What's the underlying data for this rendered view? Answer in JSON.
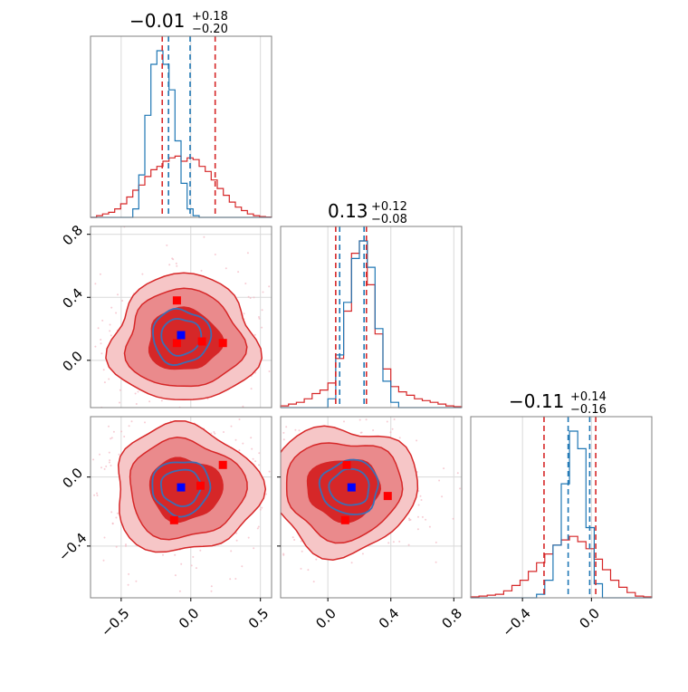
{
  "chart_data": {
    "type": "corner",
    "colors": {
      "posterior_a": "#d62728",
      "posterior_b": "#1f77b4",
      "truth_marker": "#0000ff",
      "alt_marker": "#ff0000",
      "grid": "#d9d9d9"
    },
    "parameters": [
      {
        "title_value": "−0.01",
        "title_plus": "+0.18",
        "title_minus": "−0.20",
        "range": [
          -0.72,
          0.58
        ],
        "ticks": [
          -0.5,
          0.0,
          0.5
        ],
        "tick_labels": [
          "−0.5",
          "0.0",
          "0.5"
        ],
        "quantile_lines": {
          "posterior_a": [
            -0.205,
            0.175
          ],
          "posterior_b": [
            -0.16,
            -0.005
          ]
        }
      },
      {
        "title_value": "0.13",
        "title_plus": "+0.12",
        "title_minus": "−0.08",
        "range": [
          -0.3,
          0.85
        ],
        "ticks": [
          0.0,
          0.4,
          0.8
        ],
        "tick_labels": [
          "0.0",
          "0.4",
          "0.8"
        ],
        "quantile_lines": {
          "posterior_a": [
            0.05,
            0.245
          ],
          "posterior_b": [
            0.075,
            0.23
          ]
        }
      },
      {
        "title_value": "−0.11",
        "title_plus": "+0.14",
        "title_minus": "−0.16",
        "range": [
          -0.7,
          0.35
        ],
        "ticks": [
          -0.4,
          0.0
        ],
        "tick_labels": [
          "−0.4",
          "0.0"
        ],
        "quantile_lines": {
          "posterior_a": [
            -0.275,
            0.025
          ],
          "posterior_b": [
            -0.135,
            -0.01
          ]
        }
      }
    ],
    "hist_1d": [
      {
        "posterior_a": [
          0,
          0.01,
          0.02,
          0.03,
          0.05,
          0.08,
          0.12,
          0.16,
          0.19,
          0.24,
          0.28,
          0.3,
          0.33,
          0.35,
          0.36,
          0.33,
          0.35,
          0.34,
          0.3,
          0.27,
          0.22,
          0.17,
          0.13,
          0.09,
          0.06,
          0.04,
          0.02,
          0.01,
          0.005,
          0.002
        ],
        "posterior_b": [
          0,
          0,
          0,
          0,
          0,
          0,
          0,
          0.05,
          0.25,
          0.6,
          0.9,
          0.98,
          0.9,
          0.75,
          0.45,
          0.2,
          0.05,
          0.01,
          0,
          0,
          0,
          0,
          0,
          0,
          0,
          0,
          0,
          0,
          0,
          0
        ]
      },
      {
        "posterior_a": [
          0.01,
          0.02,
          0.03,
          0.05,
          0.08,
          0.1,
          0.14,
          0.28,
          0.55,
          0.88,
          0.95,
          0.7,
          0.42,
          0.22,
          0.12,
          0.09,
          0.07,
          0.05,
          0.04,
          0.03,
          0.02,
          0.01,
          0.005
        ],
        "posterior_b": [
          0,
          0,
          0,
          0,
          0,
          0,
          0.05,
          0.3,
          0.6,
          0.85,
          0.95,
          0.8,
          0.45,
          0.15,
          0.03,
          0,
          0,
          0,
          0,
          0,
          0,
          0,
          0
        ]
      },
      {
        "posterior_a": [
          0.005,
          0.01,
          0.015,
          0.02,
          0.04,
          0.07,
          0.1,
          0.15,
          0.2,
          0.25,
          0.3,
          0.33,
          0.35,
          0.32,
          0.28,
          0.22,
          0.16,
          0.1,
          0.06,
          0.03,
          0.01,
          0.005
        ],
        "posterior_b": [
          0,
          0,
          0,
          0,
          0,
          0,
          0,
          0,
          0.02,
          0.1,
          0.3,
          0.65,
          0.95,
          0.85,
          0.4,
          0.08,
          0,
          0,
          0,
          0,
          0,
          0
        ]
      }
    ],
    "scatter_2d": [
      {
        "panel": "param2_vs_param1",
        "posterior_a_center": [
          -0.05,
          0.13
        ],
        "posterior_b_center": [
          -0.07,
          0.15
        ],
        "truth_marker": [
          -0.07,
          0.16
        ],
        "alt_markers": [
          [
            -0.1,
            0.38
          ],
          [
            -0.1,
            0.11
          ],
          [
            0.08,
            0.12
          ],
          [
            0.23,
            0.11
          ]
        ]
      },
      {
        "panel": "param3_vs_param1",
        "posterior_a_center": [
          -0.04,
          -0.07
        ],
        "posterior_b_center": [
          -0.07,
          -0.06
        ],
        "truth_marker": [
          -0.07,
          -0.06
        ],
        "alt_markers": [
          [
            0.23,
            0.07
          ],
          [
            0.07,
            -0.05
          ],
          [
            -0.12,
            -0.25
          ]
        ]
      },
      {
        "panel": "param3_vs_param2",
        "posterior_a_center": [
          0.1,
          -0.07
        ],
        "posterior_b_center": [
          0.14,
          -0.06
        ],
        "truth_marker": [
          0.15,
          -0.06
        ],
        "alt_markers": [
          [
            0.12,
            0.07
          ],
          [
            0.38,
            -0.11
          ],
          [
            0.11,
            -0.25
          ]
        ]
      }
    ]
  }
}
